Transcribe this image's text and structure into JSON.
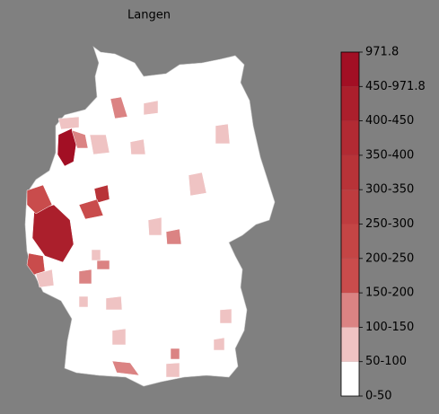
{
  "title": "Langen",
  "colorbar": {
    "labels": [
      "0-50",
      "50-100",
      "100-150",
      "150-200",
      "200-250",
      "250-300",
      "300-350",
      "350-400",
      "400-450",
      "450-971.8",
      "971.8"
    ],
    "colors": [
      "#ffffff",
      "#efc3c3",
      "#db8383",
      "#c94c4c",
      "#c44545",
      "#be3c3f",
      "#b83338",
      "#b22a33",
      "#ab1f2c",
      "#a20f24"
    ]
  }
}
